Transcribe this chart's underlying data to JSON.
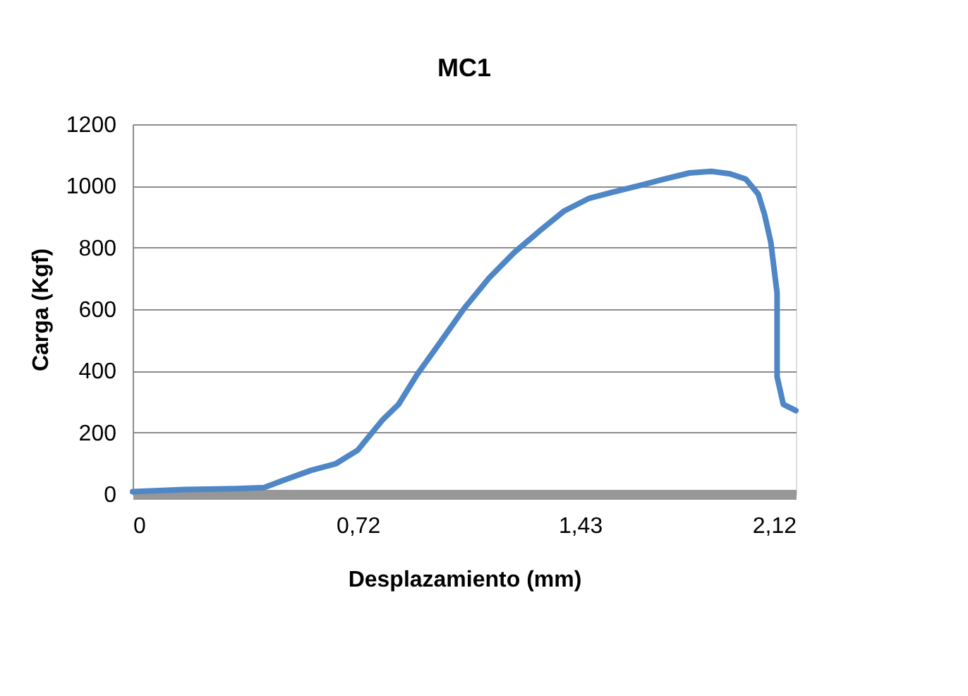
{
  "chart_data": {
    "type": "line",
    "title": "MC1",
    "xlabel": "Desplazamiento (mm)",
    "ylabel": "Carga (Kgf)",
    "x": [
      0,
      0.17,
      0.33,
      0.42,
      0.48,
      0.57,
      0.65,
      0.72,
      0.8,
      0.85,
      0.91,
      0.98,
      1.06,
      1.14,
      1.22,
      1.3,
      1.38,
      1.46,
      1.54,
      1.62,
      1.7,
      1.78,
      1.85,
      1.91,
      1.96,
      2.0,
      2.02,
      2.04,
      2.06,
      2.06,
      2.08,
      2.12
    ],
    "series": [
      {
        "color": "#4f86c6",
        "values": [
          8,
          15,
          18,
          21,
          44,
          77,
          99,
          143,
          242,
          291,
          389,
          488,
          603,
          702,
          784,
          853,
          919,
          960,
          981,
          1001,
          1022,
          1042,
          1047,
          1039,
          1022,
          973,
          907,
          817,
          652,
          381,
          291,
          271
        ]
      }
    ],
    "xlim": [
      0,
      2.12
    ],
    "xticks": [
      0,
      {
        "value": 0.72,
        "label": "0,72"
      },
      {
        "value": 1.43,
        "label": "1,43"
      },
      {
        "value": 2.12,
        "label": "2,12"
      }
    ],
    "ylim": [
      0,
      1200
    ],
    "yticks": [
      0,
      200,
      400,
      600,
      800,
      1000,
      1200
    ],
    "grid": "y",
    "marker": "none",
    "line_style": "solid"
  }
}
